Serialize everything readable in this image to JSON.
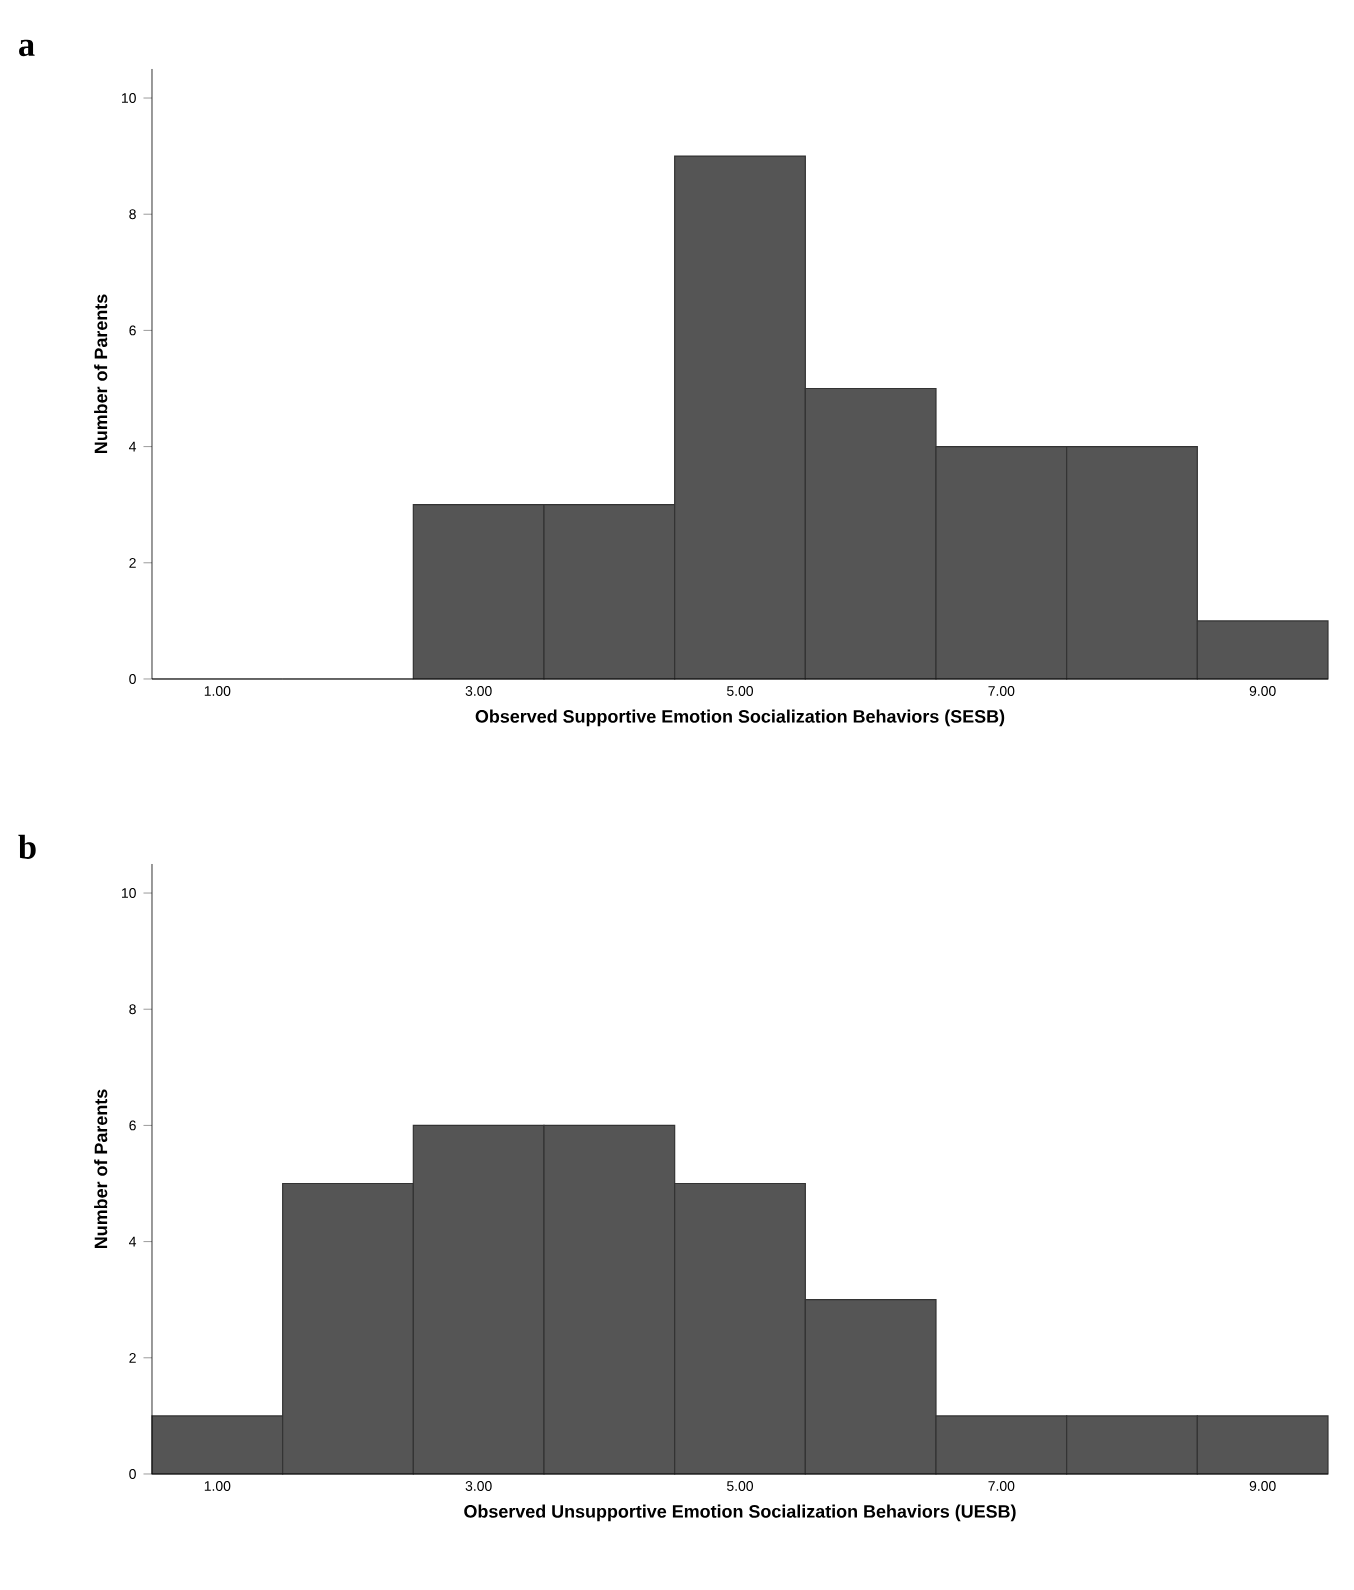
{
  "chart_data": [
    {
      "type": "histogram",
      "title": "a",
      "xlabel": "Observed Supportive Emotion Socialization Behaviors (SESB)",
      "ylabel": "Number of Parents",
      "bins": [
        0.5,
        1.5,
        2.5,
        3.5,
        4.5,
        5.5,
        6.5,
        7.5,
        8.5,
        9.5
      ],
      "values": [
        0,
        0,
        3,
        3,
        9,
        5,
        4,
        4,
        1
      ],
      "color": "#555555",
      "xlim": [
        0.5,
        9.5
      ],
      "ylim": [
        0,
        10.5
      ],
      "xticks": [
        {
          "value": 1,
          "label": "1.00"
        },
        {
          "value": 3,
          "label": "3.00"
        },
        {
          "value": 5,
          "label": "5.00"
        },
        {
          "value": 7,
          "label": "7.00"
        },
        {
          "value": 9,
          "label": "9.00"
        }
      ],
      "yticks": [
        0,
        2,
        4,
        6,
        8,
        10
      ]
    },
    {
      "type": "histogram",
      "title": "b",
      "xlabel": "Observed Unsupportive Emotion Socialization Behaviors (UESB)",
      "ylabel": "Number of Parents",
      "bins": [
        0.5,
        1.5,
        2.5,
        3.5,
        4.5,
        5.5,
        6.5,
        7.5,
        8.5,
        9.5
      ],
      "values": [
        1,
        5,
        6,
        6,
        5,
        3,
        1,
        1,
        1
      ],
      "color": "#555555",
      "xlim": [
        0.5,
        9.5
      ],
      "ylim": [
        0,
        10.5
      ],
      "xticks": [
        {
          "value": 1,
          "label": "1.00"
        },
        {
          "value": 3,
          "label": "3.00"
        },
        {
          "value": 5,
          "label": "5.00"
        },
        {
          "value": 7,
          "label": "7.00"
        },
        {
          "value": 9,
          "label": "9.00"
        }
      ],
      "yticks": [
        0,
        2,
        4,
        6,
        8,
        10
      ]
    }
  ]
}
